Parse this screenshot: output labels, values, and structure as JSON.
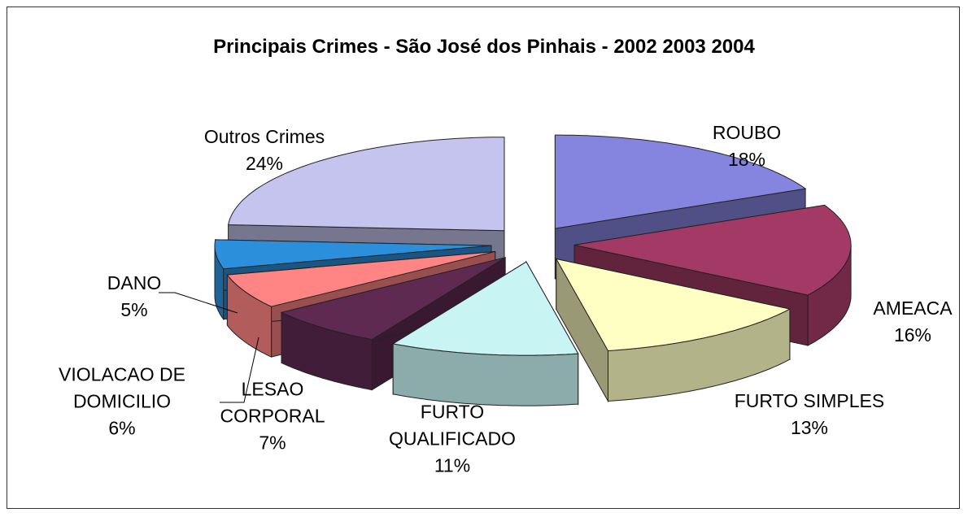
{
  "chart_data": {
    "type": "pie",
    "title": "Principais Crimes - São José dos Pinhais - 2002 2003 2004",
    "categories": [
      "ROUBO",
      "AMEACA",
      "FURTO SIMPLES",
      "FURTO QUALIFICADO",
      "LESAO CORPORAL",
      "VIOLACAO DE DOMICILIO",
      "DANO",
      "Outros Crimes"
    ],
    "values": [
      18,
      16,
      13,
      11,
      7,
      6,
      5,
      24
    ],
    "value_labels": [
      "18%",
      "16%",
      "13%",
      "11%",
      "7%",
      "6%",
      "5%",
      "24%"
    ],
    "colors": [
      "#8585e0",
      "#a33a66",
      "#ffffc4",
      "#c8f4f4",
      "#5e2a52",
      "#ff8484",
      "#2b8fdc",
      "#c4c4ee"
    ],
    "three_d": true,
    "exploded": true
  }
}
